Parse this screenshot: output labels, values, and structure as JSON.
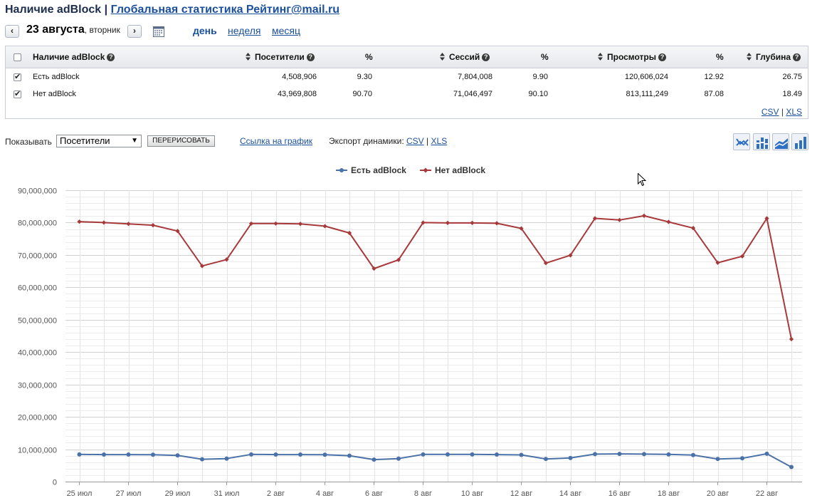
{
  "header": {
    "title_bold": "Наличие adBlock",
    "separator": "|",
    "title_link": "Глобальная статистика Рейтинг@mail.ru"
  },
  "datebar": {
    "prev_label": "‹",
    "next_label": "›",
    "date": "23 августа",
    "weekday": ", вторник",
    "icons": {
      "prev": "chevron-left-icon",
      "next": "chevron-right-icon",
      "calendar": "calendar-icon"
    },
    "periods": [
      {
        "label": "день",
        "active": true
      },
      {
        "label": "неделя",
        "active": false
      },
      {
        "label": "месяц",
        "active": false
      }
    ]
  },
  "table": {
    "columns": [
      "Наличие adBlock",
      "Посетители",
      "%",
      "Сессий",
      "%",
      "Просмотры",
      "%",
      "Глубина"
    ],
    "rows": [
      {
        "checked": true,
        "name": "Есть adBlock",
        "visitors": "4,508,906",
        "visitors_pct": "9.30",
        "sessions": "7,804,008",
        "sessions_pct": "9.90",
        "views": "120,606,024",
        "views_pct": "12.92",
        "depth": "26.75"
      },
      {
        "checked": true,
        "name": "Нет adBlock",
        "visitors": "43,969,808",
        "visitors_pct": "90.70",
        "sessions": "71,046,497",
        "sessions_pct": "90.10",
        "views": "813,111,249",
        "views_pct": "87.08",
        "depth": "18.49"
      }
    ],
    "export": {
      "csv": "CSV",
      "sep": "|",
      "xls": "XLS"
    }
  },
  "controls": {
    "show_label": "Показывать",
    "metric_selected": "Посетители",
    "redraw_label": "ПЕРЕРИСОВАТЬ",
    "chart_link": "Ссылка на график",
    "export_label": "Экспорт динамики:",
    "export_csv": "CSV",
    "export_sep": "|",
    "export_xls": "XLS",
    "chart_types": [
      "line-chart-icon",
      "stacked-bar-chart-icon",
      "area-chart-icon",
      "bar-chart-icon"
    ]
  },
  "colors": {
    "series_with": "#4a72a8",
    "series_without": "#a8393b",
    "link": "#1a4f9c"
  },
  "chart_data": {
    "type": "line",
    "x": [
      "25 июл",
      "26 июл",
      "27 июл",
      "28 июл",
      "29 июл",
      "30 июл",
      "31 июл",
      "1 авг",
      "2 авг",
      "3 авг",
      "4 авг",
      "5 авг",
      "6 авг",
      "7 авг",
      "8 авг",
      "9 авг",
      "10 авг",
      "11 авг",
      "12 авг",
      "13 авг",
      "14 авг",
      "15 авг",
      "16 авг",
      "17 авг",
      "18 авг",
      "19 авг",
      "20 авг",
      "21 авг",
      "22 авг",
      "23 авг"
    ],
    "tick_labels": [
      "25 июл",
      "27 июл",
      "29 июл",
      "31 июл",
      "2 авг",
      "4 авг",
      "6 авг",
      "8 авг",
      "10 авг",
      "12 авг",
      "14 авг",
      "16 авг",
      "18 авг",
      "20 авг",
      "22 авг"
    ],
    "series": [
      {
        "name": "Есть adBlock",
        "values": [
          8400000,
          8350000,
          8350000,
          8300000,
          8100000,
          6900000,
          7100000,
          8400000,
          8350000,
          8350000,
          8300000,
          8000000,
          6800000,
          7100000,
          8400000,
          8400000,
          8400000,
          8350000,
          8250000,
          7000000,
          7300000,
          8500000,
          8550000,
          8500000,
          8400000,
          8200000,
          7000000,
          7200000,
          8600000,
          4500000
        ]
      },
      {
        "name": "Нет adBlock",
        "values": [
          80300000,
          80000000,
          79600000,
          79200000,
          77400000,
          66600000,
          68600000,
          79700000,
          79700000,
          79600000,
          78900000,
          76800000,
          65800000,
          68500000,
          80000000,
          79900000,
          79900000,
          79800000,
          78200000,
          67500000,
          69900000,
          81300000,
          80800000,
          82100000,
          80200000,
          78300000,
          67600000,
          69600000,
          81300000,
          44000000
        ]
      }
    ],
    "yticks": [
      "0",
      "10,000,000",
      "20,000,000",
      "30,000,000",
      "40,000,000",
      "50,000,000",
      "60,000,000",
      "70,000,000",
      "80,000,000",
      "90,000,000"
    ],
    "ylim": [
      0,
      90000000
    ],
    "grid": true,
    "legend": "top-center"
  }
}
